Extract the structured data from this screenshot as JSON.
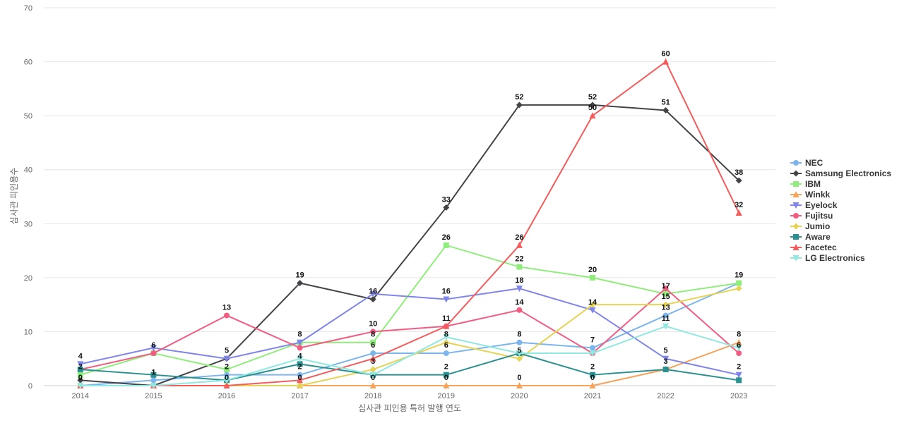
{
  "chart_data": {
    "type": "line",
    "title": "",
    "xlabel": "심사관 피인용 특허 발행 연도",
    "ylabel": "심사관 피인용수",
    "ylim": [
      0,
      70
    ],
    "yticks": [
      0,
      10,
      20,
      30,
      40,
      50,
      60,
      70
    ],
    "x": [
      "2014",
      "2015",
      "2016",
      "2017",
      "2018",
      "2019",
      "2020",
      "2021",
      "2022",
      "2023"
    ],
    "grid": true,
    "legend_position": "right",
    "series": [
      {
        "name": "NEC",
        "color": "#7cb5ec",
        "marker": "circle",
        "values": [
          0,
          1,
          2,
          2,
          6,
          6,
          8,
          7,
          13,
          19
        ]
      },
      {
        "name": "Samsung Electronics",
        "color": "#434348",
        "marker": "diamond",
        "values": [
          1,
          0,
          5,
          19,
          16,
          33,
          52,
          52,
          51,
          38
        ]
      },
      {
        "name": "IBM",
        "color": "#90ed7d",
        "marker": "square",
        "values": [
          2,
          6,
          3,
          8,
          8,
          26,
          22,
          20,
          17,
          19
        ]
      },
      {
        "name": "Winkk",
        "color": "#f7a35c",
        "marker": "triangle",
        "values": [
          0,
          0,
          0,
          0,
          0,
          0,
          0,
          0,
          3,
          8
        ]
      },
      {
        "name": "Eyelock",
        "color": "#8085e9",
        "marker": "triangle-down",
        "values": [
          4,
          7,
          5,
          8,
          17,
          16,
          18,
          14,
          5,
          2
        ]
      },
      {
        "name": "Fujitsu",
        "color": "#f15c80",
        "marker": "circle",
        "values": [
          3,
          6,
          13,
          7,
          10,
          11,
          14,
          6,
          18,
          6
        ]
      },
      {
        "name": "Jumio",
        "color": "#e4d354",
        "marker": "diamond",
        "values": [
          0,
          0,
          0,
          0,
          3,
          8,
          5,
          15,
          15,
          18
        ]
      },
      {
        "name": "Aware",
        "color": "#2b908f",
        "marker": "square",
        "values": [
          3,
          2,
          1,
          4,
          2,
          2,
          6,
          2,
          3,
          1
        ]
      },
      {
        "name": "Facetec",
        "color": "#f45b5b",
        "marker": "triangle",
        "values": [
          0,
          0,
          0,
          1,
          5,
          11,
          26,
          50,
          60,
          32
        ]
      },
      {
        "name": "LG Electronics",
        "color": "#91e8e1",
        "marker": "triangle-down",
        "values": [
          0,
          0,
          1,
          5,
          2,
          9,
          6,
          6,
          11,
          7
        ]
      }
    ],
    "data_labels": [
      {
        "x": "2014",
        "text": "4"
      },
      {
        "x": "2014",
        "text": "2"
      },
      {
        "x": "2014",
        "text": "0"
      },
      {
        "x": "2015",
        "text": "6"
      },
      {
        "x": "2015",
        "text": "1"
      },
      {
        "x": "2016",
        "text": "13"
      },
      {
        "x": "2016",
        "text": "5"
      },
      {
        "x": "2016",
        "text": "2"
      },
      {
        "x": "2016",
        "text": "0"
      },
      {
        "x": "2017",
        "text": "19"
      },
      {
        "x": "2017",
        "text": "8"
      },
      {
        "x": "2017",
        "text": "4"
      },
      {
        "x": "2017",
        "text": "2"
      },
      {
        "x": "2017",
        "text": "0"
      },
      {
        "x": "2018",
        "text": "16"
      },
      {
        "x": "2018",
        "text": "10"
      },
      {
        "x": "2018",
        "text": "8"
      },
      {
        "x": "2018",
        "text": "6"
      },
      {
        "x": "2018",
        "text": "3"
      },
      {
        "x": "2018",
        "text": "0"
      },
      {
        "x": "2019",
        "text": "33"
      },
      {
        "x": "2019",
        "text": "26"
      },
      {
        "x": "2019",
        "text": "16"
      },
      {
        "x": "2019",
        "text": "11"
      },
      {
        "x": "2019",
        "text": "8"
      },
      {
        "x": "2019",
        "text": "6"
      },
      {
        "x": "2019",
        "text": "2"
      },
      {
        "x": "2019",
        "text": "0"
      },
      {
        "x": "2020",
        "text": "52"
      },
      {
        "x": "2020",
        "text": "26"
      },
      {
        "x": "2020",
        "text": "22"
      },
      {
        "x": "2020",
        "text": "18"
      },
      {
        "x": "2020",
        "text": "14"
      },
      {
        "x": "2020",
        "text": "8"
      },
      {
        "x": "2020",
        "text": "5"
      },
      {
        "x": "2020",
        "text": "0"
      },
      {
        "x": "2021",
        "text": "52"
      },
      {
        "x": "2021",
        "text": "50"
      },
      {
        "x": "2021",
        "text": "20"
      },
      {
        "x": "2021",
        "text": "14"
      },
      {
        "x": "2021",
        "text": "7"
      },
      {
        "x": "2021",
        "text": "2"
      },
      {
        "x": "2021",
        "text": "0"
      },
      {
        "x": "2022",
        "text": "60"
      },
      {
        "x": "2022",
        "text": "51"
      },
      {
        "x": "2022",
        "text": "17"
      },
      {
        "x": "2022",
        "text": "15"
      },
      {
        "x": "2022",
        "text": "13"
      },
      {
        "x": "2022",
        "text": "11"
      },
      {
        "x": "2022",
        "text": "5"
      },
      {
        "x": "2022",
        "text": "3"
      },
      {
        "x": "2023",
        "text": "38"
      },
      {
        "x": "2023",
        "text": "32"
      },
      {
        "x": "2023",
        "text": "19"
      },
      {
        "x": "2023",
        "text": "8"
      },
      {
        "x": "2023",
        "text": "6"
      },
      {
        "x": "2023",
        "text": "2"
      }
    ]
  }
}
